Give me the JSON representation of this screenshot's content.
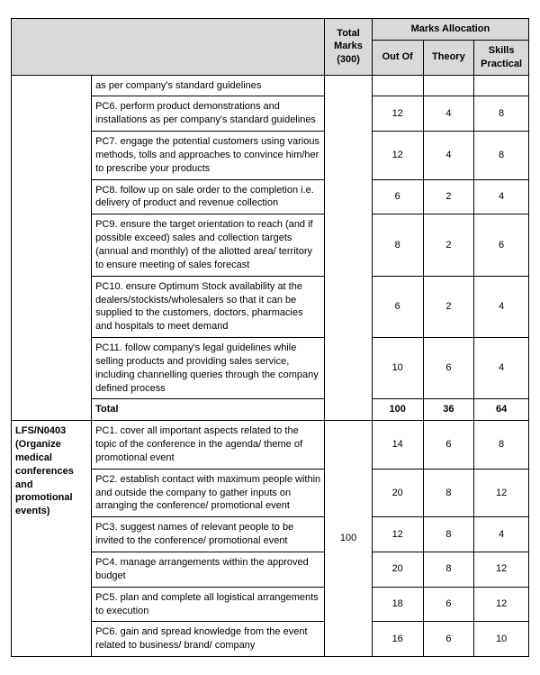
{
  "header": {
    "marks_allocation": "Marks Allocation",
    "total_marks": "Total Marks (300)",
    "out_of": "Out Of",
    "theory": "Theory",
    "skills_practical": "Skills Practical"
  },
  "section1": {
    "rows": [
      {
        "desc": "as per company's standard guidelines",
        "out": "",
        "th": "",
        "sp": ""
      },
      {
        "desc": "PC6. perform product demonstrations and installations as per company's standard guidelines",
        "out": "12",
        "th": "4",
        "sp": "8"
      },
      {
        "desc": "PC7. engage the potential customers using various methods, tolls and approaches to convince him/her to prescribe your products",
        "out": "12",
        "th": "4",
        "sp": "8"
      },
      {
        "desc": "PC8. follow up on sale order to the completion i.e. delivery of product and revenue collection",
        "out": "6",
        "th": "2",
        "sp": "4"
      },
      {
        "desc": "PC9. ensure the target orientation to reach (and if possible exceed) sales and collection targets (annual and monthly) of the allotted area/ territory to ensure meeting of sales forecast",
        "out": "8",
        "th": "2",
        "sp": "6"
      },
      {
        "desc": "PC10. ensure Optimum Stock availability at the dealers/stockists/wholesalers so that it can be supplied to the customers, doctors, pharmacies and hospitals to meet demand",
        "out": "6",
        "th": "2",
        "sp": "4"
      },
      {
        "desc": "PC11. follow company's legal guidelines while selling products and providing sales service, including channelling queries through the company defined process",
        "out": "10",
        "th": "6",
        "sp": "4"
      }
    ],
    "total_label": "Total",
    "total_out": "100",
    "total_th": "36",
    "total_sp": "64"
  },
  "section2": {
    "unit_label": "LFS/N0403 (Organize medical conferences and promotional events)",
    "total_marks": "100",
    "rows": [
      {
        "desc": "PC1. cover all important aspects related to the topic of the conference in the agenda/ theme of promotional event",
        "out": "14",
        "th": "6",
        "sp": "8"
      },
      {
        "desc": "PC2. establish contact with maximum people within and outside the company to gather inputs on arranging the conference/ promotional event",
        "out": "20",
        "th": "8",
        "sp": "12"
      },
      {
        "desc": "PC3. suggest names of relevant people to be invited to the conference/ promotional event",
        "out": "12",
        "th": "8",
        "sp": "4"
      },
      {
        "desc": "PC4. manage arrangements within the approved budget",
        "out": "20",
        "th": "8",
        "sp": "12"
      },
      {
        "desc": "PC5. plan and complete all logistical arrangements to execution",
        "out": "18",
        "th": "6",
        "sp": "12"
      },
      {
        "desc": "PC6. gain and spread knowledge from the event related to business/ brand/ company",
        "out": "16",
        "th": "6",
        "sp": "10"
      }
    ]
  }
}
